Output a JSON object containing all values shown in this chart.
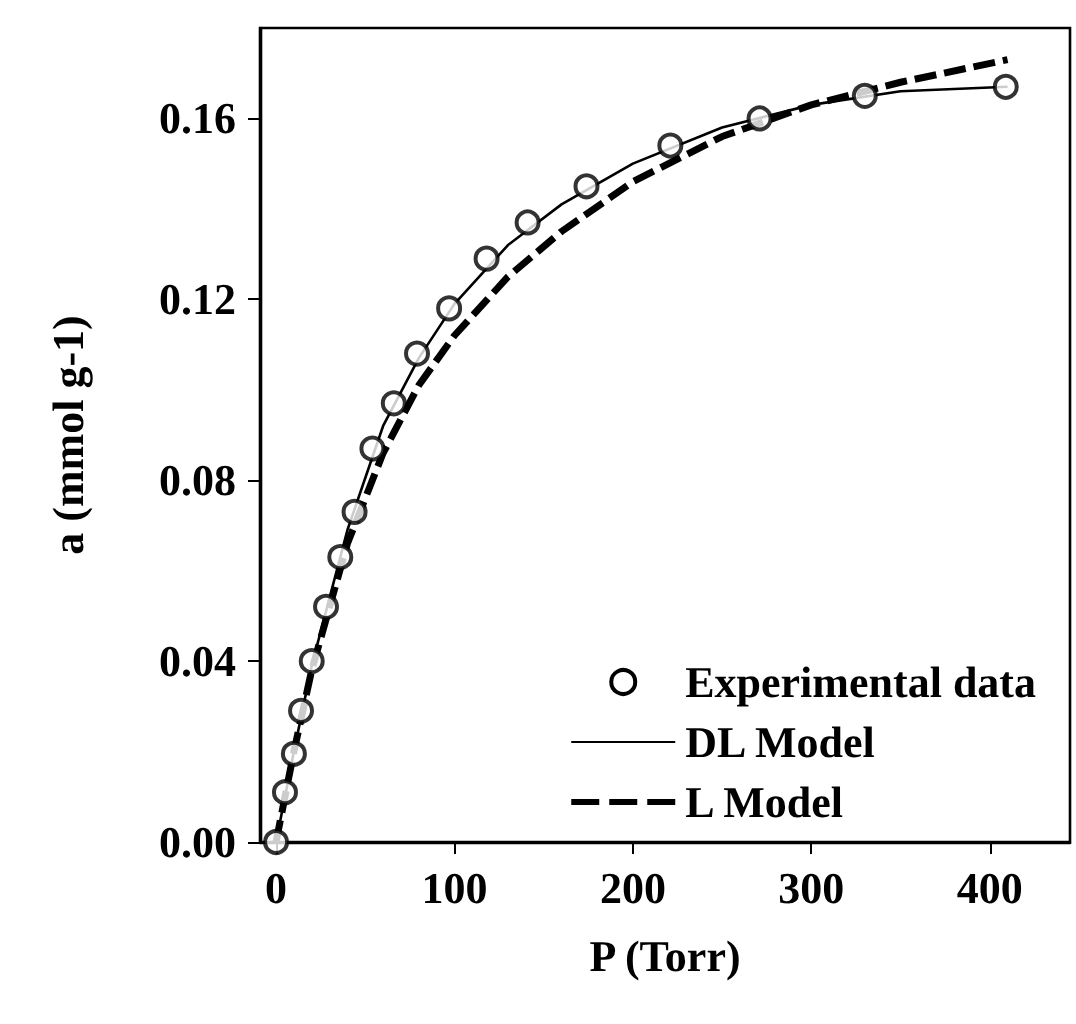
{
  "chart_data": {
    "type": "scatter",
    "xlabel": "P (Torr)",
    "ylabel": "a (mmol g-1)",
    "xlim": [
      -9,
      445
    ],
    "xticks": [
      0,
      100,
      200,
      300,
      400
    ],
    "ylim": [
      0,
      0.18
    ],
    "yticks": [
      {
        "value": 0,
        "label": "0.00"
      },
      {
        "value": 0.04,
        "label": "0.04"
      },
      {
        "value": 0.08,
        "label": "0.08"
      },
      {
        "value": 0.12,
        "label": "0.12"
      },
      {
        "value": 0.16,
        "label": "0.16"
      }
    ],
    "grid": false,
    "legend": "bottom right",
    "series": [
      {
        "name": "Experimental data",
        "marker": "circle",
        "color": "#000000",
        "x": [
          0,
          5,
          10,
          14,
          20,
          28,
          36,
          44,
          54,
          66,
          79,
          97,
          118,
          141,
          174,
          221,
          271,
          330,
          409
        ],
        "values": [
          0,
          0.011,
          0.0195,
          0.029,
          0.04,
          0.052,
          0.063,
          0.073,
          0.087,
          0.097,
          0.108,
          0.118,
          0.129,
          0.137,
          0.145,
          0.154,
          0.16,
          0.165,
          0.167
        ]
      },
      {
        "name": "DL Model",
        "type": "line",
        "marker": "none",
        "line_style": "solid",
        "color": "#000000",
        "x": [
          0,
          10,
          20,
          40,
          60,
          80,
          100,
          130,
          160,
          200,
          250,
          300,
          350,
          410
        ],
        "values": [
          0,
          0.02,
          0.039,
          0.069,
          0.092,
          0.107,
          0.119,
          0.132,
          0.141,
          0.15,
          0.158,
          0.163,
          0.166,
          0.167
        ]
      },
      {
        "name": "L Model",
        "type": "line",
        "marker": "none",
        "line_style": "dashed",
        "color": "#000000",
        "x": [
          0,
          10,
          20,
          40,
          60,
          80,
          100,
          130,
          160,
          200,
          250,
          300,
          350,
          410
        ],
        "values": [
          0,
          0.02,
          0.038,
          0.066,
          0.086,
          0.101,
          0.112,
          0.125,
          0.135,
          0.146,
          0.156,
          0.163,
          0.168,
          0.173
        ]
      }
    ]
  }
}
